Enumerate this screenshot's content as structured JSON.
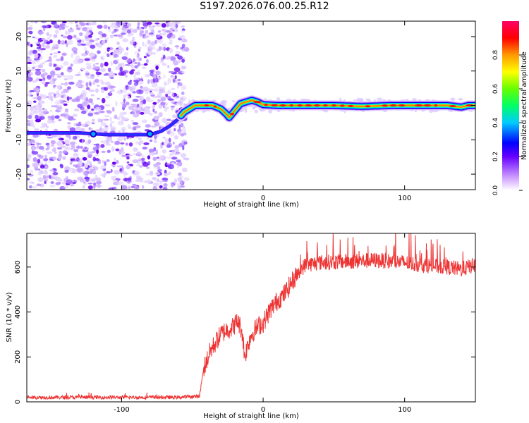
{
  "title": "S197.2026.076.00.25.R12",
  "chart_data": [
    {
      "type": "heatmap",
      "title": "S197.2026.076.00.25.R12",
      "xlabel": "Height of straight line (km)",
      "ylabel": "Frequency (Hz)",
      "xlim": [
        -167,
        150
      ],
      "ylim": [
        -24.5,
        24.5
      ],
      "x_ticks": [
        -100,
        0,
        100
      ],
      "y_ticks": [
        -20,
        -10,
        0,
        10,
        20
      ],
      "noise_region_x": [
        -167,
        -54
      ],
      "ridge": {
        "x": [
          -167,
          -130,
          -110,
          -90,
          -80,
          -72,
          -66,
          -60,
          -56,
          -52,
          -48,
          -42,
          -36,
          -30,
          -26,
          -24,
          -22,
          -20,
          -16,
          -12,
          -8,
          -4,
          0,
          10,
          30,
          50,
          70,
          90,
          110,
          130,
          140,
          145,
          150
        ],
        "y": [
          -8,
          -8,
          -8.5,
          -8.5,
          -8.5,
          -7.5,
          -6,
          -4,
          -2,
          -1,
          0,
          0,
          0,
          -1,
          -2.5,
          -3.5,
          -2.5,
          -1.5,
          0.5,
          1,
          1.5,
          1,
          0.2,
          0,
          0,
          0,
          -0.3,
          0,
          0,
          0,
          -0.5,
          0,
          0
        ]
      },
      "colorbar": {
        "label": "Normalized spectral amplitude",
        "ticks": [
          "0.0",
          "0.2",
          "0.4",
          "0.6",
          "0.8"
        ],
        "range": [
          0,
          1
        ]
      }
    },
    {
      "type": "line",
      "xlabel": "Height of straight line (km)",
      "ylabel": "SNR (10 * v/v)",
      "xlim": [
        -167,
        150
      ],
      "ylim": [
        0,
        750
      ],
      "x_ticks": [
        -100,
        0,
        100
      ],
      "y_ticks": [
        0,
        200,
        400,
        600
      ],
      "series": [
        {
          "name": "SNR",
          "color": "#ee3333",
          "x": [
            -167,
            -150,
            -120,
            -100,
            -80,
            -60,
            -45,
            -42,
            -40,
            -37,
            -34,
            -30,
            -26,
            -22,
            -18,
            -15,
            -13,
            -11,
            -9,
            -6,
            -3,
            0,
            5,
            10,
            15,
            20,
            25,
            30,
            40,
            60,
            80,
            90,
            100,
            110,
            120,
            130,
            140,
            150
          ],
          "y": [
            20,
            20,
            20,
            20,
            20,
            20,
            25,
            150,
            180,
            230,
            260,
            300,
            320,
            330,
            360,
            320,
            200,
            250,
            290,
            320,
            340,
            350,
            410,
            450,
            480,
            530,
            580,
            610,
            620,
            625,
            630,
            625,
            620,
            610,
            605,
            600,
            590,
            610
          ]
        }
      ]
    }
  ]
}
